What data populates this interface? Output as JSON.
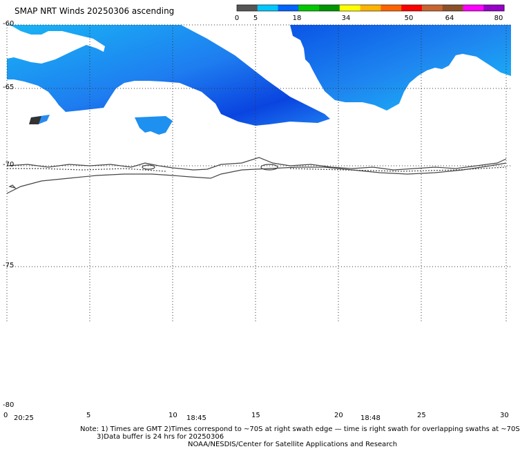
{
  "title": "SMAP NRT Winds 20250306 ascending",
  "colorbar": {
    "labels": [
      "0",
      "5",
      "18",
      "34",
      "50",
      "64",
      "80"
    ],
    "segments": [
      "#555555",
      "#00c8ff",
      "#0064ff",
      "#00c800",
      "#009600",
      "#ffff00",
      "#ffb400",
      "#ff6400",
      "#ff0000",
      "#c86432",
      "#8c5028",
      "#ff00ff",
      "#9600c8"
    ]
  },
  "lat_labels": [
    "-60",
    "-65",
    "-70",
    "-75",
    "-80"
  ],
  "lon_labels": [
    "0",
    "5",
    "10",
    "15",
    "20",
    "25",
    "30"
  ],
  "time_labels": [
    "20:25",
    "18:45",
    "18:48"
  ],
  "notes": {
    "line1": "Note:  1) Times are GMT  2)Times correspond to ~70S at right swath edge — time is right swath for overlapping swaths at ~70S",
    "line2": "3)Data buffer is 24 hrs for 20250306",
    "line3": "NOAA/NESDIS/Center for Satellite Applications and Research"
  },
  "colors": {
    "wind_blue": "#1e7df0",
    "wind_light": "#19b4f5",
    "wind_dark": "#0a44e0",
    "rain_flag": "#333333"
  }
}
